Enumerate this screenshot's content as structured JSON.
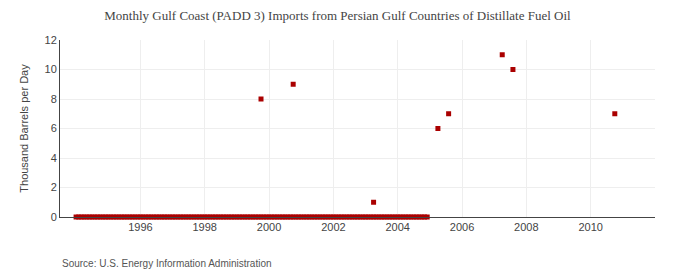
{
  "chart_data": {
    "type": "scatter",
    "title": "Monthly Gulf Coast (PADD 3) Imports from Persian Gulf Countries of Distillate Fuel Oil",
    "y_label": "Thousand Barrels per Day",
    "annotations": [
      "Source: U.S. Energy Information Administration"
    ],
    "color": "#aa0000",
    "marker": "square",
    "grid": true,
    "xlim": [
      1993.5,
      2012.0
    ],
    "ylim": [
      0,
      12
    ],
    "xticks": [
      1996,
      1998,
      2000,
      2002,
      2004,
      2006,
      2008,
      2010
    ],
    "yticks": [
      0,
      2,
      4,
      6,
      8,
      10,
      12
    ],
    "x": [
      1994.0,
      1994.083,
      1994.167,
      1994.25,
      1994.333,
      1994.417,
      1994.5,
      1994.583,
      1994.667,
      1994.75,
      1994.833,
      1994.917,
      1995.0,
      1995.083,
      1995.167,
      1995.25,
      1995.333,
      1995.417,
      1995.5,
      1995.583,
      1995.667,
      1995.75,
      1995.833,
      1995.917,
      1996.0,
      1996.083,
      1996.167,
      1996.25,
      1996.333,
      1996.417,
      1996.5,
      1996.583,
      1996.667,
      1996.75,
      1996.833,
      1996.917,
      1997.0,
      1997.083,
      1997.167,
      1997.25,
      1997.333,
      1997.417,
      1997.5,
      1997.583,
      1997.667,
      1997.75,
      1997.833,
      1997.917,
      1998.0,
      1998.083,
      1998.167,
      1998.25,
      1998.333,
      1998.417,
      1998.5,
      1998.583,
      1998.667,
      1998.75,
      1998.833,
      1998.917,
      1999.0,
      1999.083,
      1999.167,
      1999.25,
      1999.333,
      1999.417,
      1999.5,
      1999.583,
      1999.667,
      1999.75,
      1999.833,
      1999.917,
      2000.0,
      2000.083,
      2000.167,
      2000.25,
      2000.333,
      2000.417,
      2000.5,
      2000.583,
      2000.667,
      2000.75,
      2000.833,
      2000.917,
      2001.0,
      2001.083,
      2001.167,
      2001.25,
      2001.333,
      2001.417,
      2001.5,
      2001.583,
      2001.667,
      2001.75,
      2001.833,
      2001.917,
      2002.0,
      2002.083,
      2002.167,
      2002.25,
      2002.333,
      2002.417,
      2002.5,
      2002.583,
      2002.667,
      2002.75,
      2002.833,
      2002.917,
      2003.0,
      2003.083,
      2003.167,
      2003.25,
      2003.333,
      2003.417,
      2003.5,
      2003.583,
      2003.667,
      2003.75,
      2003.833,
      2003.917,
      2004.0,
      2004.083,
      2004.167,
      2004.25,
      2004.333,
      2004.417,
      2004.5,
      2004.583,
      2004.667,
      2004.75,
      2004.833,
      2004.917,
      1999.75,
      2000.75,
      2003.25,
      2005.25,
      2005.583,
      2007.25,
      2007.583,
      2010.75
    ],
    "values": [
      0,
      0,
      0,
      0,
      0,
      0,
      0,
      0,
      0,
      0,
      0,
      0,
      0,
      0,
      0,
      0,
      0,
      0,
      0,
      0,
      0,
      0,
      0,
      0,
      0,
      0,
      0,
      0,
      0,
      0,
      0,
      0,
      0,
      0,
      0,
      0,
      0,
      0,
      0,
      0,
      0,
      0,
      0,
      0,
      0,
      0,
      0,
      0,
      0,
      0,
      0,
      0,
      0,
      0,
      0,
      0,
      0,
      0,
      0,
      0,
      0,
      0,
      0,
      0,
      0,
      0,
      0,
      0,
      0,
      0,
      0,
      0,
      0,
      0,
      0,
      0,
      0,
      0,
      0,
      0,
      0,
      0,
      0,
      0,
      0,
      0,
      0,
      0,
      0,
      0,
      0,
      0,
      0,
      0,
      0,
      0,
      0,
      0,
      0,
      0,
      0,
      0,
      0,
      0,
      0,
      0,
      0,
      0,
      0,
      0,
      0,
      0,
      0,
      0,
      0,
      0,
      0,
      0,
      0,
      0,
      0,
      0,
      0,
      0,
      0,
      0,
      0,
      0,
      0,
      0,
      0,
      0,
      8,
      9,
      1,
      6,
      7,
      11,
      10,
      7
    ]
  }
}
